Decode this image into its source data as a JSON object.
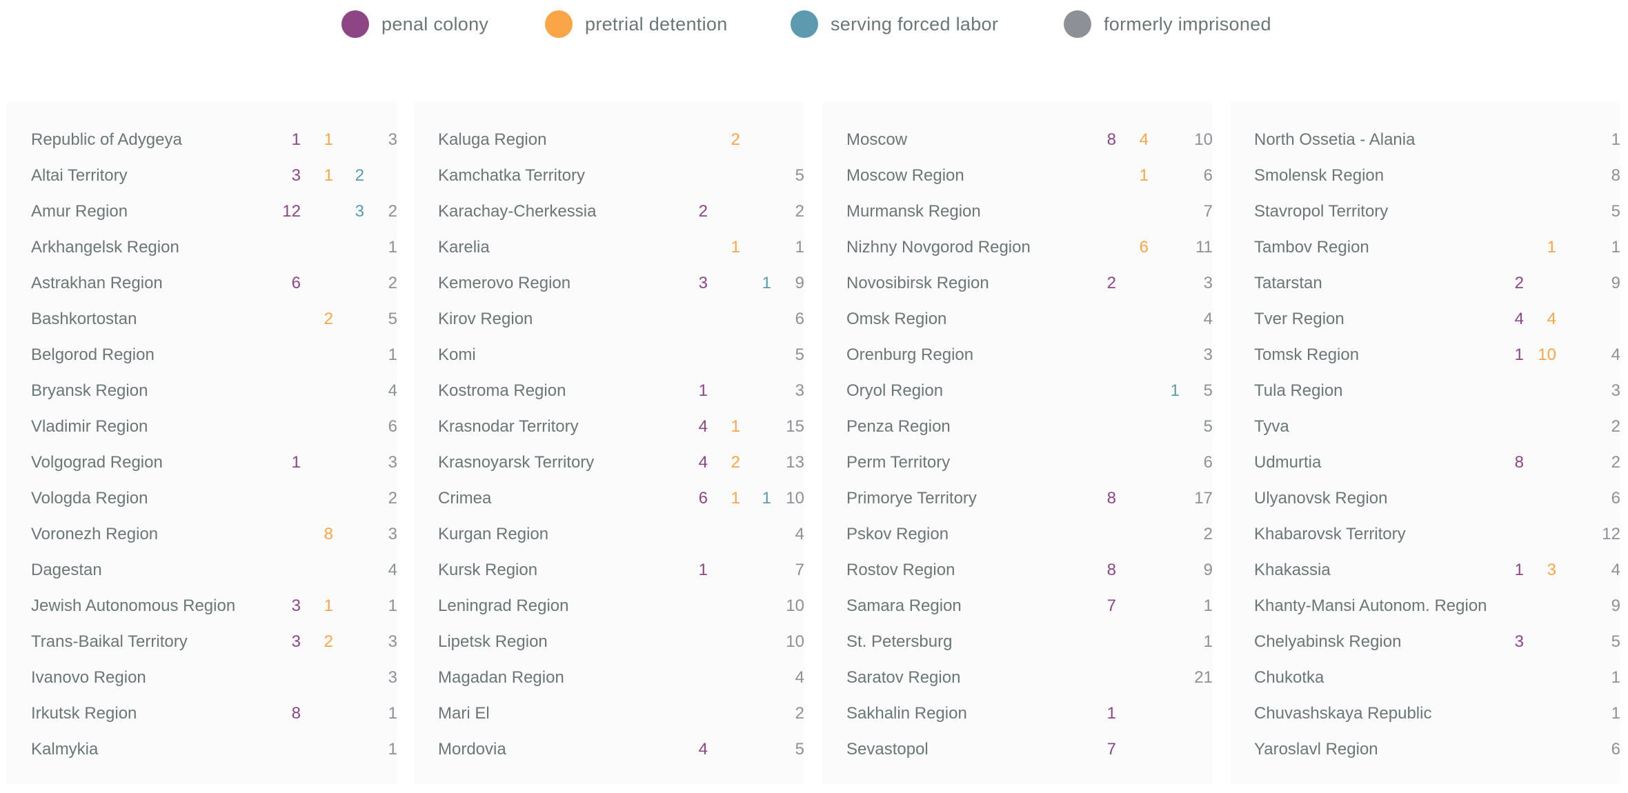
{
  "legend": [
    {
      "label": "penal colony",
      "color": "#8e4585"
    },
    {
      "label": "pretrial detention",
      "color": "#f9a548"
    },
    {
      "label": "serving forced labor",
      "color": "#5b9aaf"
    },
    {
      "label": "formerly imprisoned",
      "color": "#8d9096"
    }
  ],
  "columns": [
    [
      [
        "Republic of Adygeya",
        "1",
        "1",
        "",
        "3"
      ],
      [
        "Altai Territory",
        "3",
        "1",
        "2",
        ""
      ],
      [
        "Amur Region",
        "12",
        "",
        "3",
        "2"
      ],
      [
        "Arkhangelsk Region",
        "",
        "",
        "",
        "1"
      ],
      [
        "Astrakhan Region",
        "6",
        "",
        "",
        "2"
      ],
      [
        "Bashkortostan",
        "",
        "2",
        "",
        "5"
      ],
      [
        "Belgorod Region",
        "",
        "",
        "",
        "1"
      ],
      [
        "Bryansk Region",
        "",
        "",
        "",
        "4"
      ],
      [
        "Vladimir Region",
        "",
        "",
        "",
        "6"
      ],
      [
        "Volgograd Region",
        "1",
        "",
        "",
        "3"
      ],
      [
        "Vologda Region",
        "",
        "",
        "",
        "2"
      ],
      [
        "Voronezh Region",
        "",
        "8",
        "",
        "3"
      ],
      [
        "Dagestan",
        "",
        "",
        "",
        "4"
      ],
      [
        "Jewish Autonomous Region",
        "3",
        "1",
        "",
        "1"
      ],
      [
        "Trans-Baikal Territory",
        "3",
        "2",
        "",
        "3"
      ],
      [
        "Ivanovo Region",
        "",
        "",
        "",
        "3"
      ],
      [
        "Irkutsk Region",
        "8",
        "",
        "",
        "1"
      ],
      [
        "Kalmykia",
        "",
        "",
        "",
        "1"
      ]
    ],
    [
      [
        "Kaluga Region",
        "",
        "2",
        "",
        ""
      ],
      [
        "Kamchatka Territory",
        "",
        "",
        "",
        "5"
      ],
      [
        "Karachay-Cherkessia",
        "2",
        "",
        "",
        "2"
      ],
      [
        "Karelia",
        "",
        "1",
        "",
        "1"
      ],
      [
        "Kemerovo Region",
        "3",
        "",
        "1",
        "9"
      ],
      [
        "Kirov Region",
        "",
        "",
        "",
        "6"
      ],
      [
        "Komi",
        "",
        "",
        "",
        "5"
      ],
      [
        "Kostroma Region",
        "1",
        "",
        "",
        "3"
      ],
      [
        "Krasnodar Territory",
        "4",
        "1",
        "",
        "15"
      ],
      [
        "Krasnoyarsk Territory",
        "4",
        "2",
        "",
        "13"
      ],
      [
        "Crimea",
        "6",
        "1",
        "1",
        "10"
      ],
      [
        "Kurgan Region",
        "",
        "",
        "",
        "4"
      ],
      [
        "Kursk Region",
        "1",
        "",
        "",
        "7"
      ],
      [
        "Leningrad Region",
        "",
        "",
        "",
        "10"
      ],
      [
        "Lipetsk Region",
        "",
        "",
        "",
        "10"
      ],
      [
        "Magadan Region",
        "",
        "",
        "",
        "4"
      ],
      [
        "Mari El",
        "",
        "",
        "",
        "2"
      ],
      [
        "Mordovia",
        "4",
        "",
        "",
        "5"
      ]
    ],
    [
      [
        "Moscow",
        "8",
        "4",
        "",
        "10"
      ],
      [
        "Moscow Region",
        "",
        "1",
        "",
        "6"
      ],
      [
        "Murmansk Region",
        "",
        "",
        "",
        "7"
      ],
      [
        "Nizhny Novgorod Region",
        "",
        "6",
        "",
        "11"
      ],
      [
        "Novosibirsk Region",
        "2",
        "",
        "",
        "3"
      ],
      [
        "Omsk Region",
        "",
        "",
        "",
        "4"
      ],
      [
        "Orenburg Region",
        "",
        "",
        "",
        "3"
      ],
      [
        "Oryol Region",
        "",
        "",
        "1",
        "5"
      ],
      [
        "Penza Region",
        "",
        "",
        "",
        "5"
      ],
      [
        "Perm Territory",
        "",
        "",
        "",
        "6"
      ],
      [
        "Primorye Territory",
        "8",
        "",
        "",
        "17"
      ],
      [
        "Pskov Region",
        "",
        "",
        "",
        "2"
      ],
      [
        "Rostov Region",
        "8",
        "",
        "",
        "9"
      ],
      [
        "Samara Region",
        "7",
        "",
        "",
        "1"
      ],
      [
        "St. Petersburg",
        "",
        "",
        "",
        "1"
      ],
      [
        "Saratov Region",
        "",
        "",
        "",
        "21"
      ],
      [
        "Sakhalin Region",
        "1",
        "",
        "",
        ""
      ],
      [
        "Sevastopol",
        "7",
        "",
        "",
        ""
      ]
    ],
    [
      [
        "North Ossetia - Alania",
        "",
        "",
        "",
        "1"
      ],
      [
        "Smolensk Region",
        "",
        "",
        "",
        "8"
      ],
      [
        "Stavropol Territory",
        "",
        "",
        "",
        "5"
      ],
      [
        "Tambov Region",
        "",
        "1",
        "",
        "1"
      ],
      [
        "Tatarstan",
        "2",
        "",
        "",
        "9"
      ],
      [
        "Tver Region",
        "4",
        "4",
        "",
        ""
      ],
      [
        "Tomsk Region",
        "1",
        "10",
        "",
        "4"
      ],
      [
        "Tula Region",
        "",
        "",
        "",
        "3"
      ],
      [
        "Tyva",
        "",
        "",
        "",
        "2"
      ],
      [
        "Udmurtia",
        "8",
        "",
        "",
        "2"
      ],
      [
        "Ulyanovsk Region",
        "",
        "",
        "",
        "6"
      ],
      [
        "Khabarovsk Territory",
        "",
        "",
        "",
        "12"
      ],
      [
        "Khakassia",
        "1",
        "3",
        "",
        "4"
      ],
      [
        "Khanty-Mansi Autonom. Region",
        "",
        "",
        "",
        "9"
      ],
      [
        "Chelyabinsk Region",
        "3",
        "",
        "",
        "5"
      ],
      [
        "Chukotka",
        "",
        "",
        "",
        "1"
      ],
      [
        "Chuvashskaya Republic",
        "",
        "",
        "",
        "1"
      ],
      [
        "Yaroslavl Region",
        "",
        "",
        "",
        "6"
      ]
    ]
  ]
}
